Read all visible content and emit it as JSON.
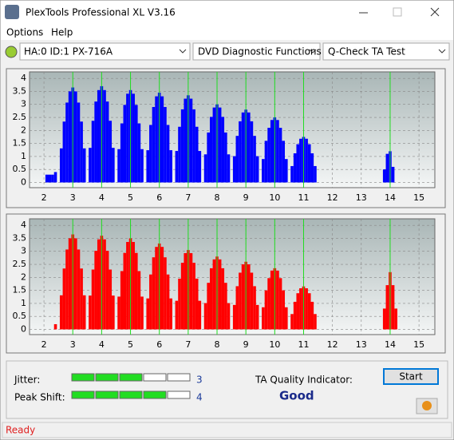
{
  "window": {
    "title": "PlexTools Professional XL V3.16"
  },
  "menu": [
    "Options",
    "Help"
  ],
  "toolbar": {
    "drive": "HA:0 ID:1  PX-716A",
    "function": "DVD Diagnostic Functions",
    "test": "Q-Check TA Test"
  },
  "chart_data": [
    {
      "type": "bar",
      "color": "#0000ff",
      "xlim": [
        1.5,
        15.55
      ],
      "ylim": [
        -0.2,
        4.25
      ],
      "xticks": [
        2,
        3,
        4,
        5,
        6,
        7,
        8,
        9,
        10,
        11,
        12,
        13,
        14,
        15
      ],
      "yticks": [
        0,
        0.5,
        1,
        1.5,
        2,
        2.5,
        3,
        3.5,
        4
      ],
      "grid": true,
      "x": [
        2.1,
        2.2,
        2.3,
        2.4,
        2.6,
        2.7,
        2.8,
        2.9,
        3,
        3.1,
        3.2,
        3.3,
        3.4,
        3.6,
        3.7,
        3.8,
        3.9,
        4,
        4.1,
        4.2,
        4.3,
        4.4,
        4.6,
        4.7,
        4.8,
        4.9,
        5,
        5.1,
        5.2,
        5.3,
        5.4,
        5.6,
        5.7,
        5.8,
        5.9,
        6,
        6.1,
        6.2,
        6.3,
        6.4,
        6.6,
        6.7,
        6.8,
        6.9,
        7,
        7.1,
        7.2,
        7.3,
        7.4,
        7.6,
        7.7,
        7.8,
        7.9,
        8,
        8.1,
        8.2,
        8.3,
        8.4,
        8.6,
        8.7,
        8.8,
        8.9,
        9,
        9.1,
        9.2,
        9.3,
        9.4,
        9.6,
        9.7,
        9.8,
        9.9,
        10,
        10.1,
        10.2,
        10.3,
        10.4,
        10.6,
        10.7,
        10.8,
        10.9,
        11,
        11.1,
        11.2,
        11.3,
        11.4,
        13.8,
        13.9,
        14,
        14.1
      ],
      "values": [
        0.3,
        0.3,
        0.3,
        0.4,
        1.31,
        2.34,
        3.07,
        3.5,
        3.65,
        3.5,
        3.07,
        2.34,
        1.31,
        1.33,
        2.37,
        3.11,
        3.55,
        3.7,
        3.55,
        3.11,
        2.37,
        1.33,
        1.28,
        2.27,
        2.98,
        3.41,
        3.55,
        3.41,
        2.98,
        2.27,
        1.28,
        1.24,
        2.21,
        2.9,
        3.31,
        3.45,
        3.31,
        2.9,
        2.21,
        1.24,
        1.21,
        2.14,
        2.81,
        3.22,
        3.35,
        3.22,
        2.81,
        2.14,
        1.21,
        1.08,
        1.92,
        2.52,
        2.88,
        3,
        2.88,
        2.52,
        1.92,
        1.08,
        1.01,
        1.79,
        2.35,
        2.69,
        2.8,
        2.69,
        2.35,
        1.79,
        1.01,
        0.9,
        1.6,
        2.1,
        2.4,
        2.5,
        2.4,
        2.1,
        1.6,
        0.9,
        0.63,
        1.12,
        1.47,
        1.68,
        1.75,
        1.68,
        1.47,
        1.12,
        0.63,
        0.5,
        1.1,
        1.2,
        0.6
      ]
    },
    {
      "type": "bar",
      "color": "#ff0000",
      "xlim": [
        1.5,
        15.55
      ],
      "ylim": [
        -0.2,
        4.25
      ],
      "xticks": [
        2,
        3,
        4,
        5,
        6,
        7,
        8,
        9,
        10,
        11,
        12,
        13,
        14,
        15
      ],
      "yticks": [
        0,
        0.5,
        1,
        1.5,
        2,
        2.5,
        3,
        3.5,
        4
      ],
      "grid": true,
      "x": [
        2.4,
        2.6,
        2.7,
        2.8,
        2.9,
        3,
        3.1,
        3.2,
        3.3,
        3.4,
        3.6,
        3.7,
        3.8,
        3.9,
        4,
        4.1,
        4.2,
        4.3,
        4.4,
        4.6,
        4.7,
        4.8,
        4.9,
        5,
        5.1,
        5.2,
        5.3,
        5.4,
        5.6,
        5.7,
        5.8,
        5.9,
        6,
        6.1,
        6.2,
        6.3,
        6.4,
        6.6,
        6.7,
        6.8,
        6.9,
        7,
        7.1,
        7.2,
        7.3,
        7.4,
        7.6,
        7.7,
        7.8,
        7.9,
        8,
        8.1,
        8.2,
        8.3,
        8.4,
        8.6,
        8.7,
        8.8,
        8.9,
        9,
        9.1,
        9.2,
        9.3,
        9.4,
        9.6,
        9.7,
        9.8,
        9.9,
        10,
        10.1,
        10.2,
        10.3,
        10.4,
        10.6,
        10.7,
        10.8,
        10.9,
        11,
        11.1,
        11.2,
        11.3,
        11.4,
        13.8,
        13.9,
        14,
        14.1,
        14.2
      ],
      "values": [
        0.2,
        1.31,
        2.34,
        3.07,
        3.5,
        3.65,
        3.5,
        3.07,
        2.34,
        1.31,
        1.3,
        2.3,
        3.02,
        3.46,
        3.6,
        3.46,
        3.02,
        2.3,
        1.3,
        1.26,
        2.24,
        2.94,
        3.36,
        3.5,
        3.36,
        2.94,
        2.24,
        1.26,
        1.19,
        2.11,
        2.77,
        3.17,
        3.3,
        3.17,
        2.77,
        2.11,
        1.19,
        1.1,
        1.95,
        2.56,
        2.93,
        3.05,
        2.93,
        2.56,
        1.95,
        1.1,
        1.01,
        1.79,
        2.35,
        2.69,
        2.8,
        2.69,
        2.35,
        1.79,
        1.01,
        0.94,
        1.66,
        2.18,
        2.5,
        2.6,
        2.5,
        2.18,
        1.66,
        0.94,
        0.85,
        1.5,
        1.97,
        2.26,
        2.35,
        2.26,
        1.97,
        1.5,
        0.85,
        0.59,
        1.06,
        1.39,
        1.58,
        1.65,
        1.58,
        1.39,
        1.06,
        0.59,
        0.8,
        1.7,
        2.2,
        1.7,
        0.8
      ]
    }
  ],
  "quality": {
    "jitter_label": "Jitter:",
    "jitter": 3,
    "peak_shift_label": "Peak Shift:",
    "peak_shift": 4,
    "indicator_label": "TA Quality Indicator:",
    "indicator": "Good",
    "start": "Start"
  },
  "status": "Ready"
}
